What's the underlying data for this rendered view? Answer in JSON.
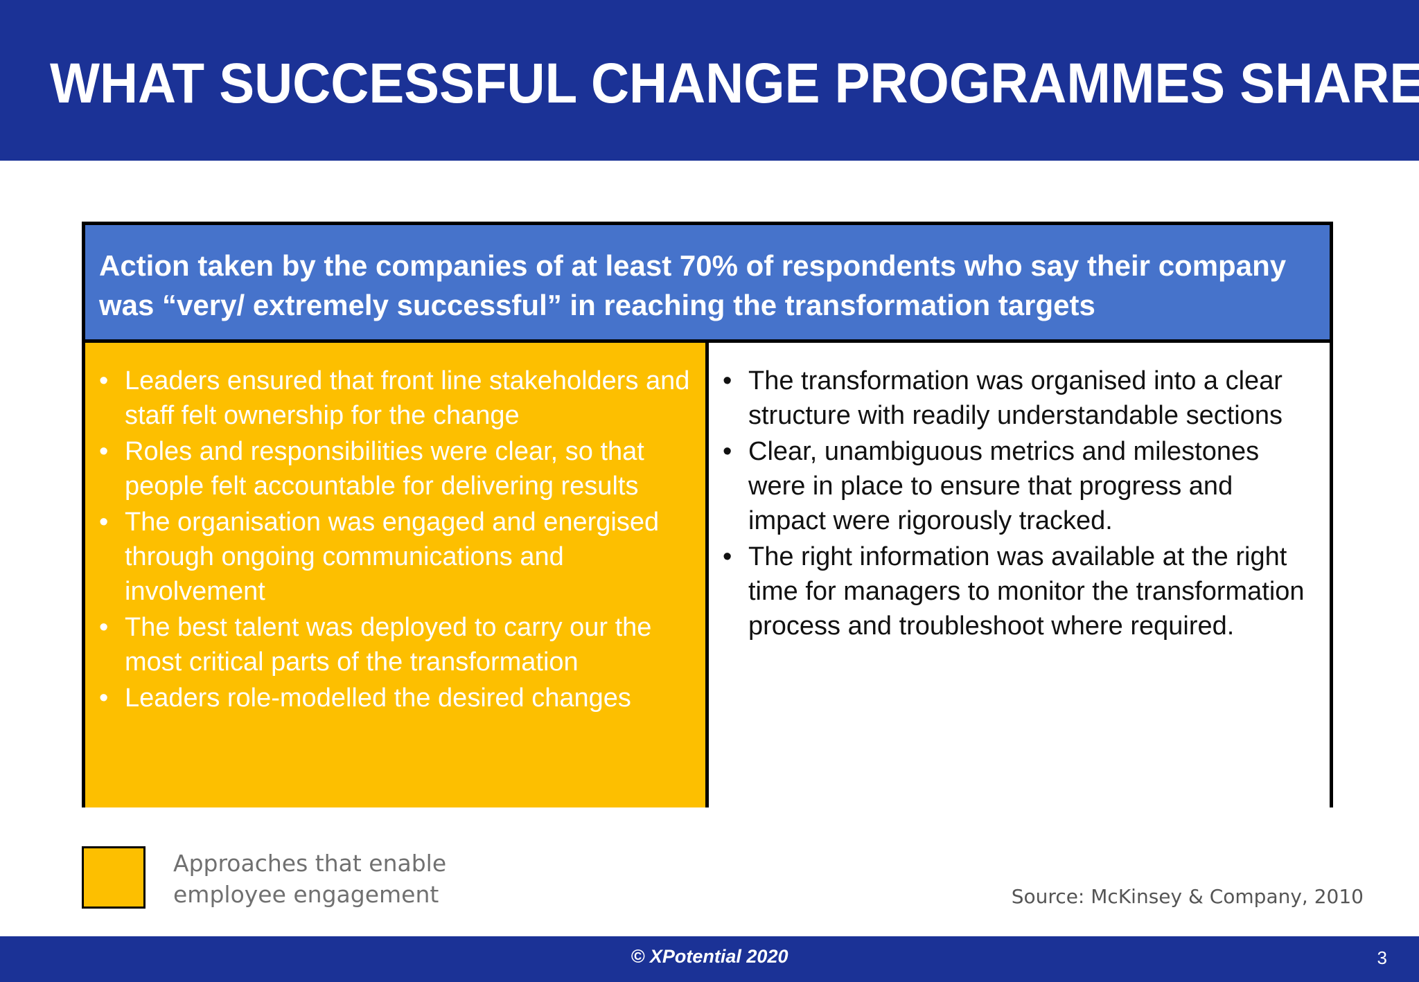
{
  "header": {
    "title": "WHAT SUCCESSFUL CHANGE PROGRAMMES SHARE"
  },
  "table": {
    "heading": "Action taken by the companies of at least 70% of respondents who say their company was “very/ extremely successful” in reaching the transformation targets",
    "left_items": [
      "Leaders ensured that front line stakeholders and staff felt ownership for the change",
      "Roles and responsibilities were clear, so that people felt accountable for delivering results",
      "The organisation was engaged and energised through ongoing communications and involvement",
      "The best talent was deployed to carry our the most critical parts of the transformation",
      "Leaders role-modelled the desired changes"
    ],
    "right_items": [
      "The transformation was organised into a clear structure with readily understandable sections",
      "Clear, unambiguous metrics and milestones were in place to ensure that progress and impact were rigorously tracked.",
      "The right information was available at the right time for managers to monitor the transformation process and troubleshoot where required."
    ]
  },
  "legend": {
    "label": "Approaches that enable employee engagement",
    "color": "#fdbf00"
  },
  "source": "Source: McKinsey & Company, 2010",
  "footer": {
    "copyright": "© XPotential 2020",
    "page_number": "3"
  },
  "colors": {
    "brand_blue": "#1b3296",
    "table_header_blue": "#4673cb",
    "highlight_yellow": "#fdbf00"
  }
}
